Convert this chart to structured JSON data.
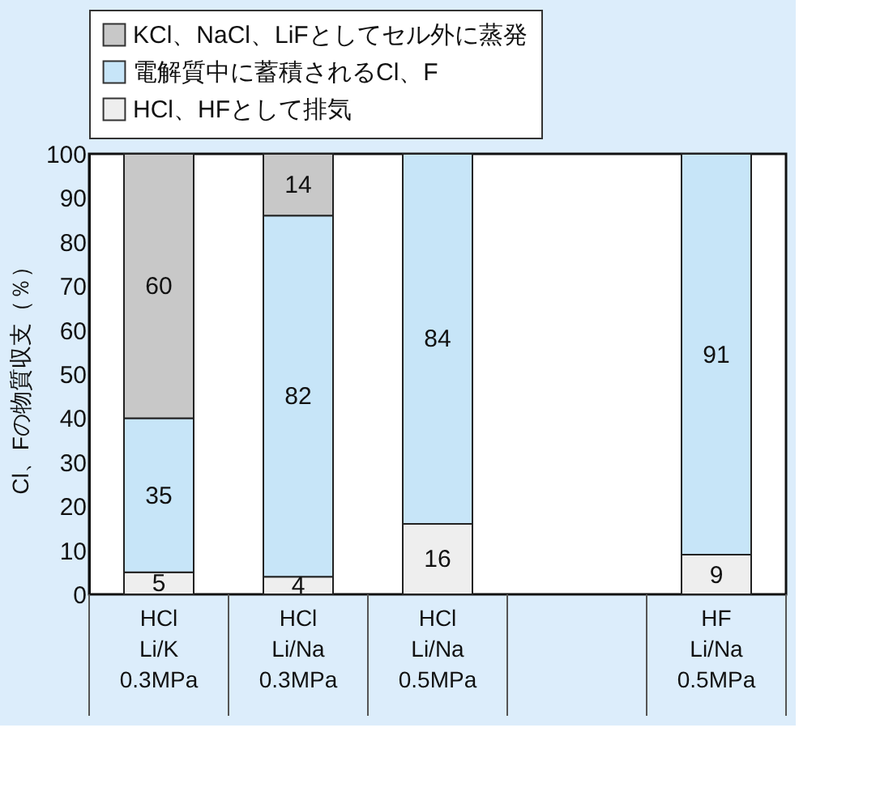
{
  "chart_data": {
    "type": "bar",
    "stacked": true,
    "data_labels": true,
    "categories": [
      "HCl\nLi/K\n0.3MPa",
      "HCl\nLi/Na\n0.3MPa",
      "HCl\nLi/Na\n0.5MPa",
      null,
      "HF\nLi/Na\n0.5MPa"
    ],
    "ylabel": "Cl、Fの物質収支（％）",
    "series": [
      {
        "name": "HCl、HFとして排気",
        "color": "#eeeeee",
        "values": [
          5,
          4,
          16,
          null,
          9
        ]
      },
      {
        "name": "電解質中に蓄積されるCl、F",
        "color": "#c7e5f8",
        "values": [
          35,
          82,
          84,
          null,
          91
        ]
      },
      {
        "name": "KCl、NaCl、LiFとしてセル外に蒸発",
        "color": "#c8c8c8",
        "values": [
          60,
          14,
          null,
          null,
          null
        ]
      }
    ],
    "ylim": [
      0,
      100
    ],
    "yticks": [
      0,
      10,
      20,
      30,
      40,
      50,
      60,
      70,
      80,
      90,
      100
    ],
    "grid": false,
    "legend": "top"
  }
}
